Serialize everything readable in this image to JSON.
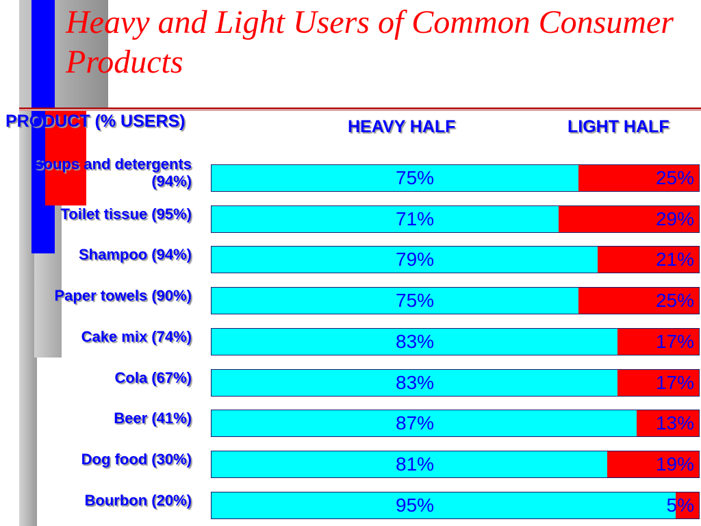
{
  "slide": {
    "title": "Heavy and Light Users of Common Consumer Products",
    "header_product": "PRODUCT (% USERS)",
    "header_heavy": "HEAVY HALF",
    "header_light": "LIGHT HALF"
  },
  "colors": {
    "heavy": "#00ffff",
    "light": "#ff0000",
    "text": "#0000ff",
    "title": "#ff0000"
  },
  "chart_data": {
    "type": "bar",
    "orientation": "horizontal",
    "stacked": true,
    "title": "Heavy and Light Users of Common Consumer Products",
    "categories": [
      "Soups and detergents (94%)",
      "Toilet tissue (95%)",
      "Shampoo (94%)",
      "Paper towels (90%)",
      "Cake mix (74%)",
      "Cola (67%)",
      "Beer (41%)",
      "Dog food (30%)",
      "Bourbon (20%)"
    ],
    "series": [
      {
        "name": "HEAVY HALF",
        "values": [
          75,
          71,
          79,
          75,
          83,
          83,
          87,
          81,
          95
        ],
        "labels": [
          "75%",
          "71%",
          "79%",
          "75%",
          "83%",
          "83%",
          "87%",
          "81%",
          "95%"
        ]
      },
      {
        "name": "LIGHT HALF",
        "values": [
          25,
          29,
          21,
          25,
          17,
          17,
          13,
          19,
          5
        ],
        "labels": [
          "25%",
          "29%",
          "21%",
          "25%",
          "17%",
          "17%",
          "13%",
          "19%",
          "5%"
        ]
      }
    ],
    "xlim": [
      0,
      100
    ],
    "grid": false,
    "legend": "column headers above bars"
  }
}
